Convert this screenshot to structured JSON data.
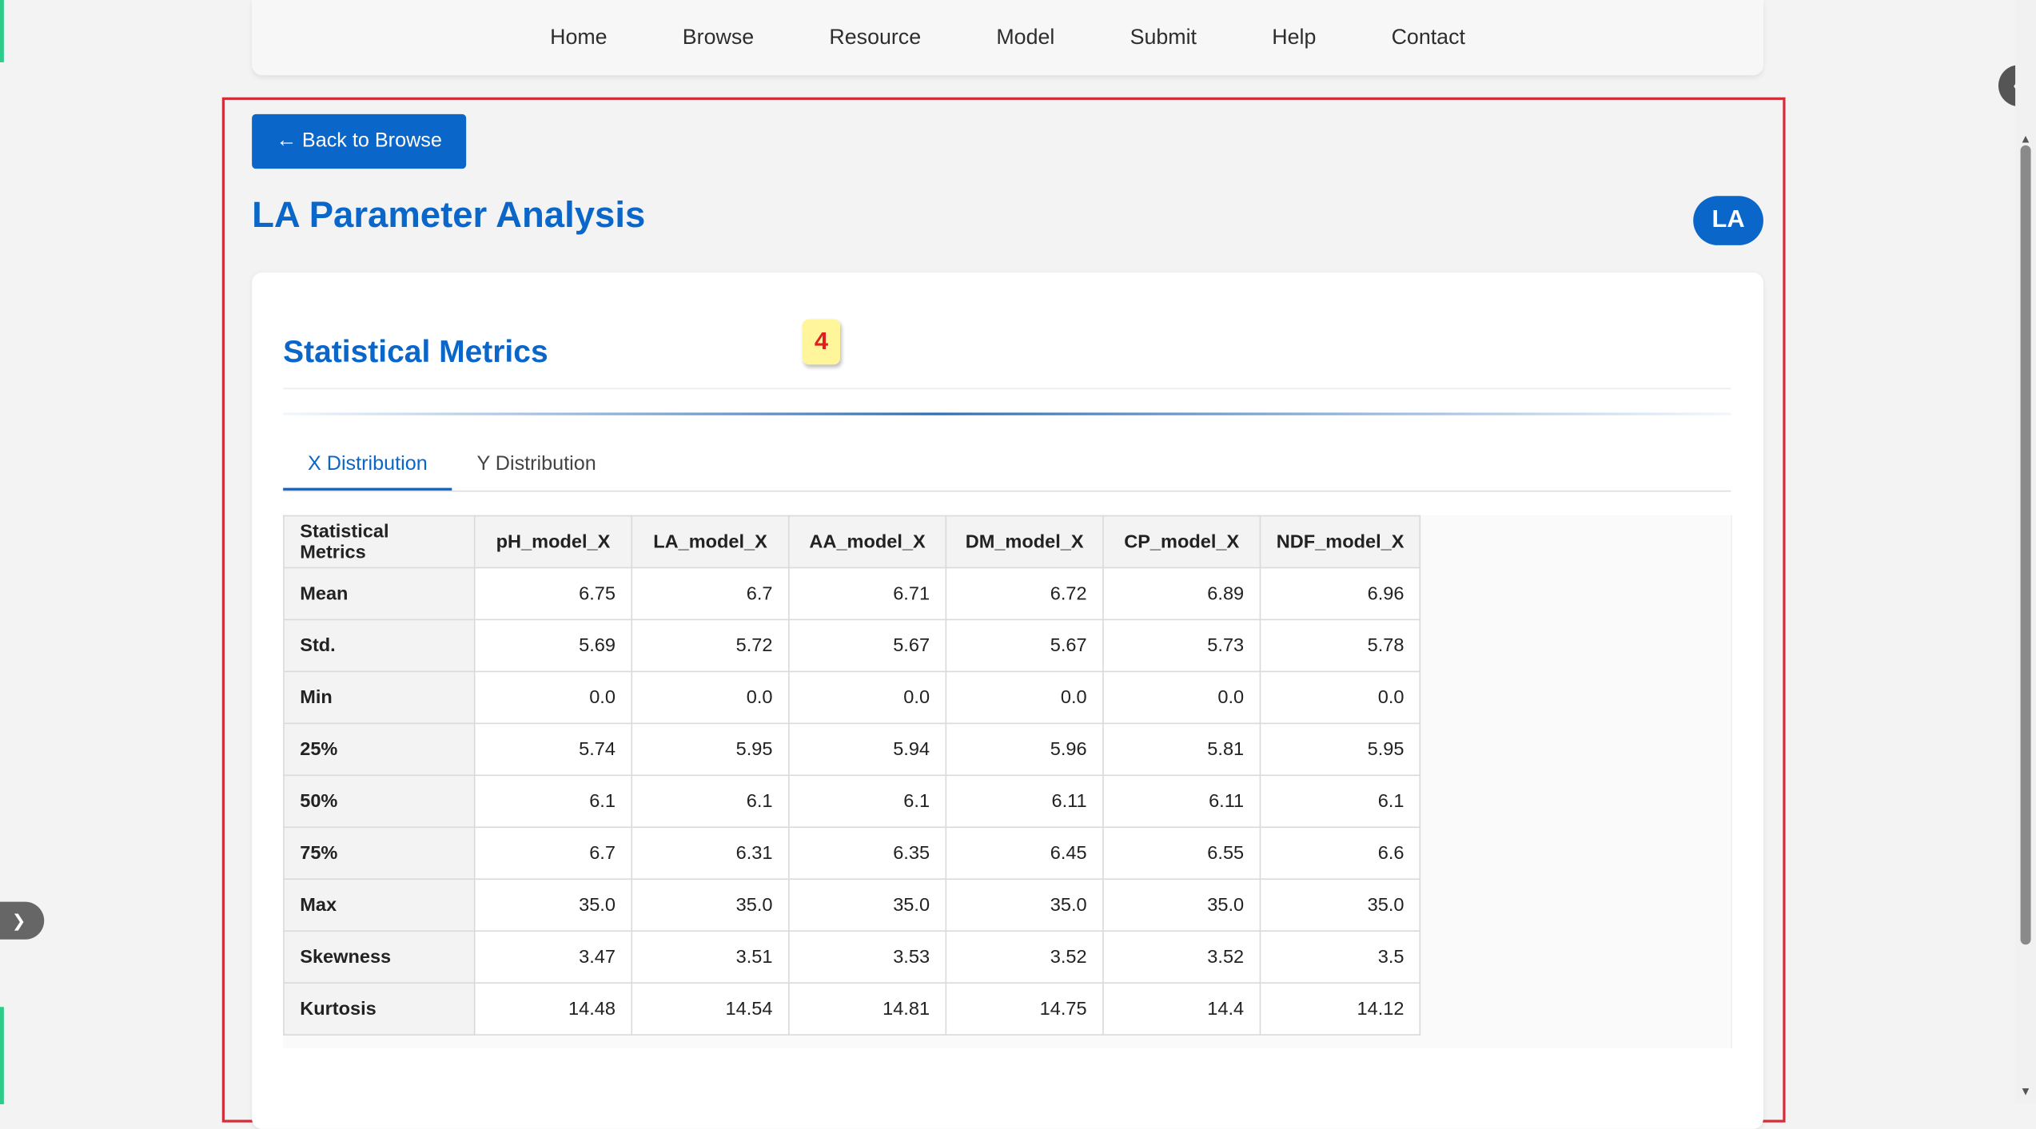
{
  "nav": {
    "items": [
      "Home",
      "Browse",
      "Resource",
      "Model",
      "Submit",
      "Help",
      "Contact"
    ]
  },
  "back_button": {
    "label": "Back to Browse",
    "icon": "arrow-left-icon"
  },
  "page_title": "LA Parameter Analysis",
  "badge": "LA",
  "card": {
    "title": "Statistical Metrics",
    "tabs": [
      "X Distribution",
      "Y Distribution"
    ],
    "active_tab": 0
  },
  "marker": "4",
  "table": {
    "headers": [
      "Statistical Metrics",
      "pH_model_X",
      "LA_model_X",
      "AA_model_X",
      "DM_model_X",
      "CP_model_X",
      "NDF_model_X"
    ],
    "rows": [
      [
        "Mean",
        "6.75",
        "6.7",
        "6.71",
        "6.72",
        "6.89",
        "6.96"
      ],
      [
        "Std.",
        "5.69",
        "5.72",
        "5.67",
        "5.67",
        "5.73",
        "5.78"
      ],
      [
        "Min",
        "0.0",
        "0.0",
        "0.0",
        "0.0",
        "0.0",
        "0.0"
      ],
      [
        "25%",
        "5.74",
        "5.95",
        "5.94",
        "5.96",
        "5.81",
        "5.95"
      ],
      [
        "50%",
        "6.1",
        "6.1",
        "6.1",
        "6.11",
        "6.11",
        "6.1"
      ],
      [
        "75%",
        "6.7",
        "6.31",
        "6.35",
        "6.45",
        "6.55",
        "6.6"
      ],
      [
        "Max",
        "35.0",
        "35.0",
        "35.0",
        "35.0",
        "35.0",
        "35.0"
      ],
      [
        "Skewness",
        "3.47",
        "3.51",
        "3.53",
        "3.52",
        "3.52",
        "3.5"
      ],
      [
        "Kurtosis",
        "14.48",
        "14.54",
        "14.81",
        "14.75",
        "14.4",
        "14.12"
      ]
    ]
  },
  "colors": {
    "accent": "#0a66c8",
    "highlight_border": "#d32f3b",
    "edge_accent": "#2ecc8a"
  }
}
